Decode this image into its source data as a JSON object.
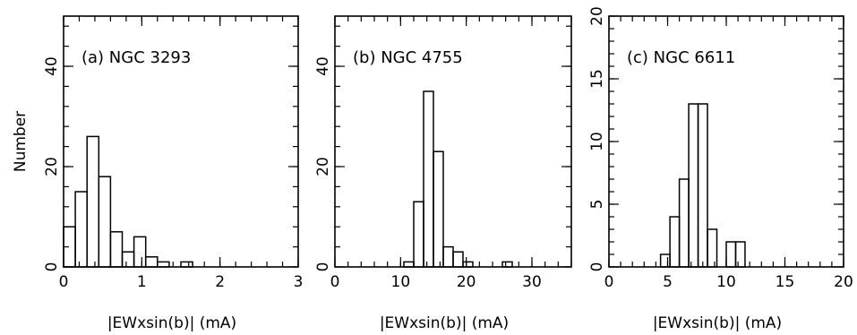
{
  "chart_data": [
    {
      "type": "bar",
      "title": "(a) NGC 3293",
      "xlabel": "|EWxsin(b)| (mA)",
      "ylabel": "Number",
      "xlim": [
        0,
        3
      ],
      "ylim": [
        0,
        50
      ],
      "xticks_major": [
        0,
        1,
        2,
        3
      ],
      "xticks_minor_step": 0.2,
      "yticks_major": [
        0,
        20,
        40
      ],
      "yticks_minor_step": 4,
      "bin_width": 0.15,
      "bin_starts": [
        0,
        0.15,
        0.3,
        0.45,
        0.6,
        0.75,
        0.9,
        1.05,
        1.2,
        1.35,
        1.5
      ],
      "values": [
        8,
        15,
        26,
        18,
        7,
        3,
        6,
        2,
        1,
        0,
        1
      ]
    },
    {
      "type": "bar",
      "title": "(b) NGC 4755",
      "xlabel": "|EWxsin(b)| (mA)",
      "ylabel": "",
      "xlim": [
        0,
        36
      ],
      "ylim": [
        0,
        50
      ],
      "xticks_major": [
        0,
        10,
        20,
        30
      ],
      "xticks_minor_step": 2,
      "yticks_major": [
        0,
        20,
        40
      ],
      "yticks_minor_step": 4,
      "bin_width": 1.5,
      "bin_starts": [
        10.5,
        12,
        13.5,
        15,
        16.5,
        18,
        19.5,
        21,
        22.5,
        24,
        25.5,
        27
      ],
      "values": [
        1,
        13,
        35,
        23,
        4,
        3,
        1,
        0,
        0,
        0,
        1,
        0
      ]
    },
    {
      "type": "bar",
      "title": "(c) NGC 6611",
      "xlabel": "|EWxsin(b)| (mA)",
      "ylabel": "",
      "xlim": [
        0,
        20
      ],
      "ylim": [
        0,
        20
      ],
      "xticks_major": [
        0,
        5,
        10,
        15,
        20
      ],
      "xticks_minor_step": 1,
      "yticks_major": [
        0,
        5,
        10,
        15,
        20
      ],
      "yticks_minor_step": 1,
      "bin_width": 0.8,
      "bin_starts": [
        4.4,
        5.2,
        6.0,
        6.8,
        7.6,
        8.4,
        9.2,
        10.0,
        10.8
      ],
      "values": [
        1,
        4,
        7,
        13,
        13,
        3,
        0,
        2,
        2
      ]
    }
  ]
}
